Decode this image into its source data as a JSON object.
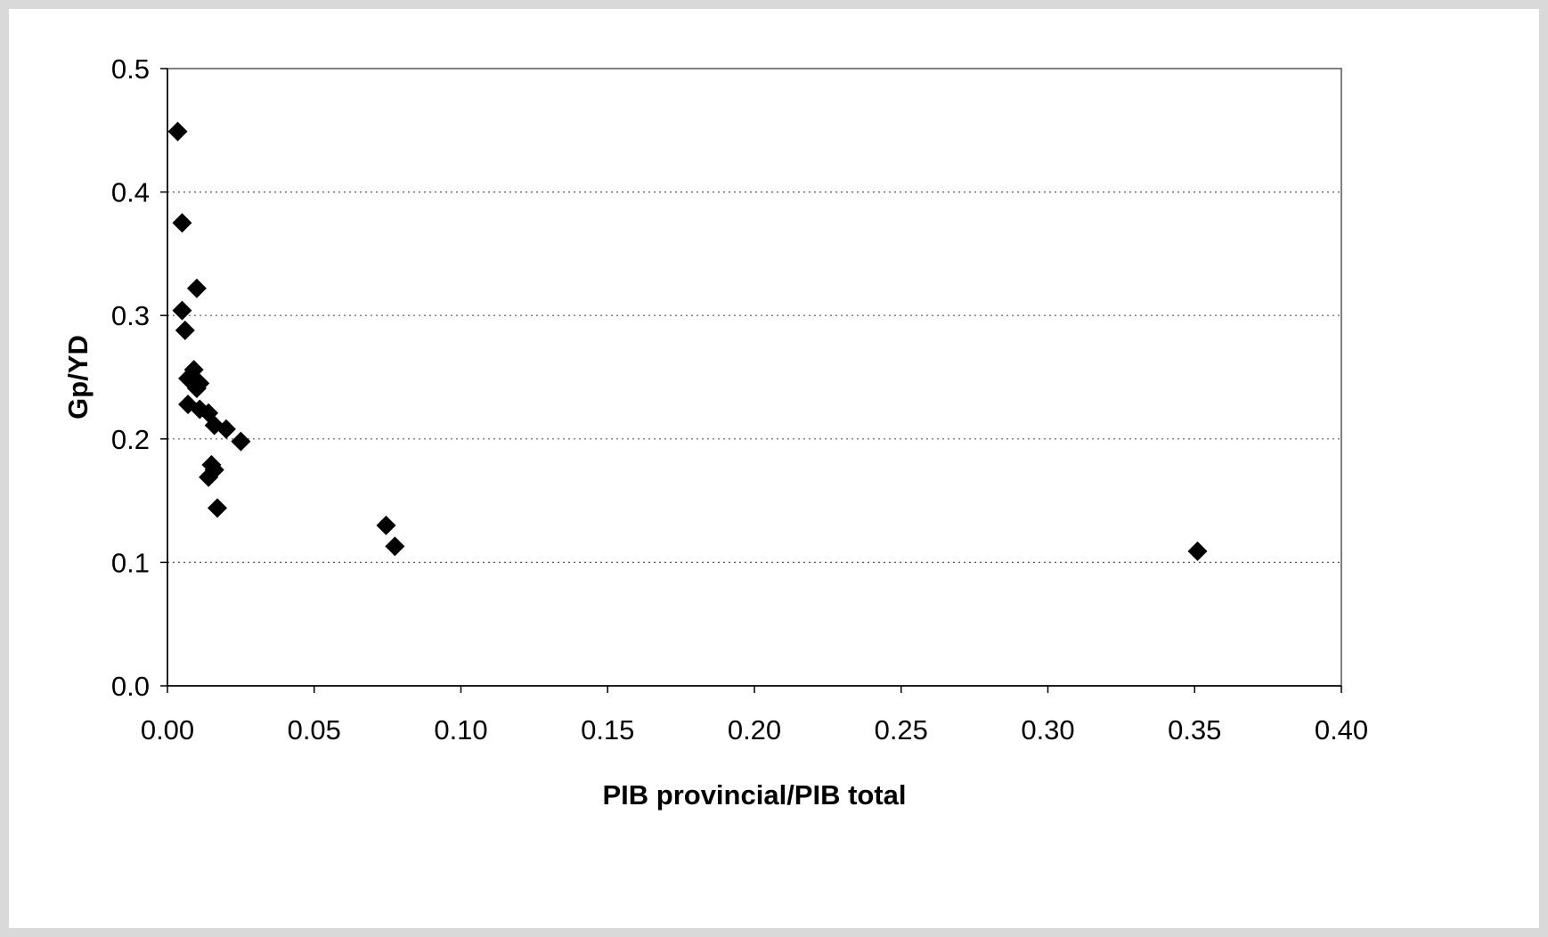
{
  "chart_data": {
    "type": "scatter",
    "title": "",
    "xlabel": "PIB provincial/PIB total",
    "ylabel": "Gp/YD",
    "xlim": [
      0.0,
      0.4
    ],
    "ylim": [
      0.0,
      0.5
    ],
    "x_ticks": [
      "0.00",
      "0.05",
      "0.10",
      "0.15",
      "0.20",
      "0.25",
      "0.30",
      "0.35",
      "0.40"
    ],
    "y_ticks": [
      "0.0",
      "0.1",
      "0.2",
      "0.3",
      "0.4",
      "0.5"
    ],
    "grid": "horizontal dotted",
    "legend": "none",
    "marker": "diamond",
    "marker_color": "#000000",
    "points": [
      {
        "x": 0.0035,
        "y": 0.449
      },
      {
        "x": 0.005,
        "y": 0.375
      },
      {
        "x": 0.01,
        "y": 0.322
      },
      {
        "x": 0.005,
        "y": 0.304
      },
      {
        "x": 0.006,
        "y": 0.288
      },
      {
        "x": 0.009,
        "y": 0.256
      },
      {
        "x": 0.007,
        "y": 0.249
      },
      {
        "x": 0.011,
        "y": 0.245
      },
      {
        "x": 0.01,
        "y": 0.241
      },
      {
        "x": 0.007,
        "y": 0.228
      },
      {
        "x": 0.011,
        "y": 0.224
      },
      {
        "x": 0.014,
        "y": 0.221
      },
      {
        "x": 0.016,
        "y": 0.211
      },
      {
        "x": 0.02,
        "y": 0.208
      },
      {
        "x": 0.025,
        "y": 0.198
      },
      {
        "x": 0.015,
        "y": 0.179
      },
      {
        "x": 0.016,
        "y": 0.175
      },
      {
        "x": 0.014,
        "y": 0.169
      },
      {
        "x": 0.017,
        "y": 0.144
      },
      {
        "x": 0.0745,
        "y": 0.13
      },
      {
        "x": 0.0775,
        "y": 0.113
      },
      {
        "x": 0.351,
        "y": 0.109
      }
    ]
  }
}
